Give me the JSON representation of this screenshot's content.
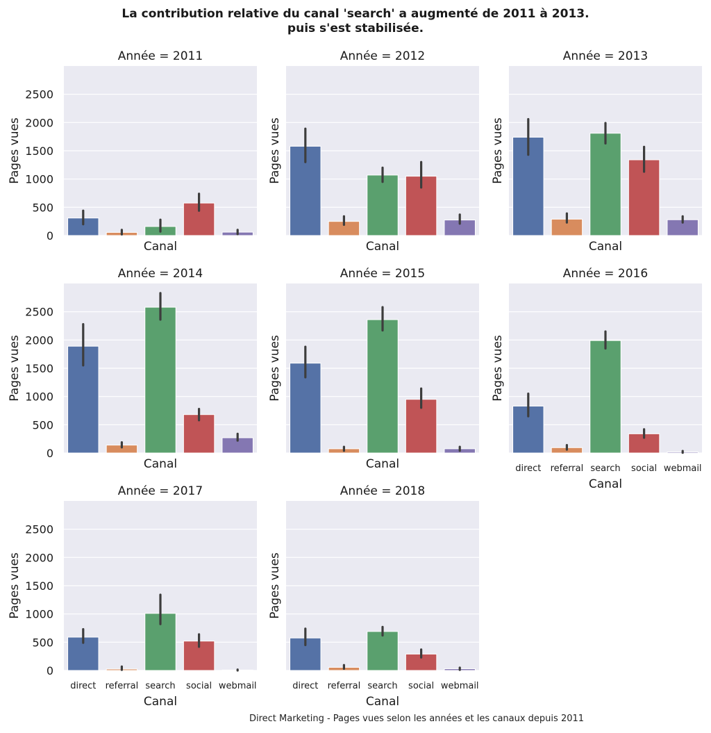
{
  "chart_data": {
    "type": "bar",
    "title": "La contribution relative du canal 'search' a augmenté de 2011 à 2013.",
    "subtitle": "puis s'est stabilisée.",
    "caption": "Direct Marketing - Pages vues selon les années et les canaux depuis 2011",
    "facet_label_prefix": "Année = ",
    "xlabel": "Canal",
    "ylabel": "Pages vues",
    "categories": [
      "direct",
      "referral",
      "search",
      "social",
      "webmail"
    ],
    "colors": [
      "#5572a6",
      "#d88c5e",
      "#5aa06e",
      "#c05456",
      "#8477b2"
    ],
    "ylim": [
      0,
      3000
    ],
    "yticks": [
      0,
      500,
      1000,
      1500,
      2000,
      2500
    ],
    "grid": true,
    "panels": [
      {
        "year": "2011",
        "values": [
          310,
          55,
          160,
          575,
          60
        ],
        "ci": [
          [
            200,
            440
          ],
          [
            20,
            100
          ],
          [
            70,
            280
          ],
          [
            440,
            740
          ],
          [
            25,
            100
          ]
        ]
      },
      {
        "year": "2012",
        "values": [
          1580,
          250,
          1070,
          1050,
          275
        ],
        "ci": [
          [
            1300,
            1890
          ],
          [
            190,
            340
          ],
          [
            950,
            1200
          ],
          [
            850,
            1300
          ],
          [
            210,
            370
          ]
        ]
      },
      {
        "year": "2013",
        "values": [
          1740,
          290,
          1810,
          1340,
          280
        ],
        "ci": [
          [
            1430,
            2060
          ],
          [
            230,
            390
          ],
          [
            1630,
            1990
          ],
          [
            1130,
            1570
          ],
          [
            230,
            340
          ]
        ]
      },
      {
        "year": "2014",
        "values": [
          1890,
          140,
          2580,
          680,
          270
        ],
        "ci": [
          [
            1550,
            2280
          ],
          [
            100,
            190
          ],
          [
            2360,
            2830
          ],
          [
            580,
            780
          ],
          [
            220,
            340
          ]
        ]
      },
      {
        "year": "2015",
        "values": [
          1590,
          75,
          2360,
          950,
          75
        ],
        "ci": [
          [
            1340,
            1880
          ],
          [
            40,
            110
          ],
          [
            2170,
            2580
          ],
          [
            800,
            1140
          ],
          [
            40,
            110
          ]
        ]
      },
      {
        "year": "2016",
        "values": [
          830,
          95,
          1990,
          340,
          18
        ],
        "ci": [
          [
            650,
            1050
          ],
          [
            60,
            140
          ],
          [
            1850,
            2150
          ],
          [
            270,
            420
          ],
          [
            5,
            35
          ]
        ]
      },
      {
        "year": "2017",
        "values": [
          590,
          25,
          1010,
          520,
          8
        ],
        "ci": [
          [
            490,
            730
          ],
          [
            10,
            70
          ],
          [
            820,
            1340
          ],
          [
            420,
            640
          ],
          [
            0,
            15
          ]
        ]
      },
      {
        "year": "2018",
        "values": [
          575,
          55,
          690,
          290,
          30
        ],
        "ci": [
          [
            450,
            740
          ],
          [
            30,
            95
          ],
          [
            620,
            770
          ],
          [
            230,
            370
          ],
          [
            10,
            50
          ]
        ]
      }
    ]
  }
}
